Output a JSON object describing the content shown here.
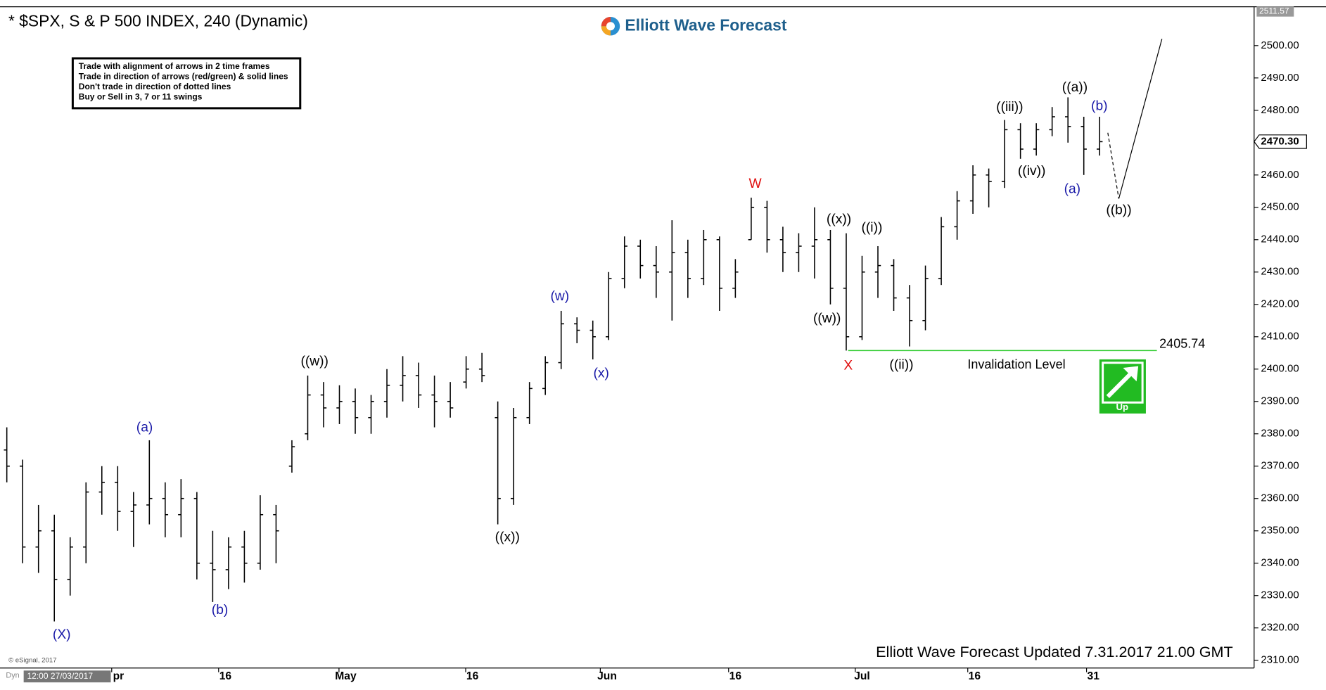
{
  "chart_data": {
    "type": "ohlc",
    "title": "* $SPX, S & P 500 INDEX, 240 (Dynamic)",
    "brand": "Elliott Wave Forecast",
    "rules": [
      "Trade with alignment of arrows in 2 time frames",
      "Trade in direction of arrows (red/green) & solid lines",
      "Don't trade in direction of dotted lines",
      "Buy or Sell in 3, 7 or 11 swings"
    ],
    "footer": "Elliott Wave Forecast Updated 7.31.2017 21.00 GMT",
    "source": "© eSignal, 2017",
    "timestamp": "12:00 27/03/2017",
    "interval_tag": "Dyn",
    "badge": "Up",
    "color": "#000000",
    "x": [
      0,
      1,
      2,
      3,
      4,
      5,
      6,
      7,
      8,
      9,
      10,
      11,
      12,
      13,
      14,
      15,
      16,
      17,
      18,
      19,
      20,
      21,
      22,
      23,
      24,
      25,
      26,
      27,
      28,
      29,
      30,
      31,
      32,
      33,
      34,
      35,
      36,
      37,
      38,
      39,
      40,
      41,
      42,
      43,
      44,
      45,
      46,
      47,
      48,
      49,
      50,
      51,
      52,
      53,
      54,
      55,
      56,
      57,
      58,
      59,
      60,
      61,
      62,
      63,
      64,
      65,
      66,
      67,
      68,
      69
    ],
    "open": [
      2375,
      2370,
      2345,
      2350,
      2335,
      2345,
      2362,
      2365,
      2356,
      2358,
      2360,
      2355,
      2360,
      2340,
      2338,
      2345,
      2340,
      2355,
      2370,
      2380,
      2392,
      2388,
      2390,
      2385,
      2390,
      2395,
      2398,
      2392,
      2390,
      2396,
      2400,
      2385,
      2360,
      2385,
      2394,
      2402,
      2414,
      2412,
      2410,
      2428,
      2438,
      2432,
      2430,
      2436,
      2428,
      2440,
      2425,
      2440,
      2450,
      2440,
      2436,
      2438,
      2440,
      2425,
      2410,
      2430,
      2432,
      2422,
      2415,
      2428,
      2444,
      2452,
      2460,
      2458,
      2474,
      2468,
      2474,
      2478,
      2475,
      2468
    ],
    "high": [
      2382,
      2372,
      2358,
      2355,
      2348,
      2365,
      2370,
      2370,
      2362,
      2378,
      2365,
      2366,
      2362,
      2350,
      2348,
      2350,
      2361,
      2358,
      2378,
      2398,
      2396,
      2395,
      2394,
      2392,
      2400,
      2404,
      2402,
      2398,
      2396,
      2404,
      2405,
      2390,
      2388,
      2396,
      2404,
      2418,
      2416,
      2415,
      2430,
      2441,
      2440,
      2438,
      2446,
      2440,
      2443,
      2441,
      2434,
      2453,
      2452,
      2444,
      2442,
      2450,
      2443,
      2442,
      2435,
      2438,
      2434,
      2426,
      2432,
      2447,
      2455,
      2463,
      2462,
      2477,
      2476,
      2476,
      2481,
      2484,
      2478,
      2478
    ],
    "low": [
      2365,
      2340,
      2337,
      2322,
      2330,
      2340,
      2355,
      2350,
      2345,
      2352,
      2348,
      2348,
      2335,
      2328,
      2332,
      2334,
      2338,
      2340,
      2368,
      2378,
      2382,
      2383,
      2380,
      2380,
      2385,
      2390,
      2388,
      2382,
      2385,
      2394,
      2396,
      2352,
      2358,
      2383,
      2392,
      2400,
      2408,
      2403,
      2409,
      2425,
      2428,
      2422,
      2415,
      2422,
      2426,
      2418,
      2422,
      2440,
      2436,
      2430,
      2430,
      2428,
      2420,
      2405.74,
      2409,
      2422,
      2418,
      2407,
      2412,
      2426,
      2440,
      2448,
      2450,
      2456,
      2465,
      2466,
      2472,
      2470,
      2460,
      2466
    ],
    "close": [
      2370,
      2345,
      2350,
      2335,
      2345,
      2362,
      2365,
      2356,
      2358,
      2360,
      2355,
      2360,
      2340,
      2338,
      2345,
      2340,
      2355,
      2350,
      2376,
      2392,
      2388,
      2390,
      2385,
      2390,
      2395,
      2398,
      2392,
      2390,
      2388,
      2400,
      2398,
      2360,
      2385,
      2394,
      2402,
      2414,
      2412,
      2410,
      2428,
      2438,
      2432,
      2430,
      2436,
      2428,
      2440,
      2425,
      2430,
      2450,
      2440,
      2436,
      2438,
      2440,
      2425,
      2410,
      2430,
      2432,
      2422,
      2415,
      2428,
      2444,
      2452,
      2460,
      2458,
      2474,
      2468,
      2474,
      2478,
      2475,
      2468,
      2470.3
    ],
    "xlim": [
      -0.43,
      78.7
    ],
    "ylim": [
      2307.6,
      2512
    ],
    "xticks": [
      {
        "value": 7.05,
        "label": "pr"
      },
      {
        "value": 13.8,
        "label": "16"
      },
      {
        "value": 21.4,
        "label": "May"
      },
      {
        "value": 29.4,
        "label": "16"
      },
      {
        "value": 37.9,
        "label": "Jun"
      },
      {
        "value": 46.0,
        "label": "16"
      },
      {
        "value": 54.0,
        "label": "Jul"
      },
      {
        "value": 61.1,
        "label": "16"
      },
      {
        "value": 68.6,
        "label": "31"
      }
    ],
    "yticks": [
      {
        "value": 2310,
        "label": "2310.00"
      },
      {
        "value": 2320,
        "label": "2320.00"
      },
      {
        "value": 2330,
        "label": "2330.00"
      },
      {
        "value": 2340,
        "label": "2340.00"
      },
      {
        "value": 2350,
        "label": "2350.00"
      },
      {
        "value": 2360,
        "label": "2360.00"
      },
      {
        "value": 2370,
        "label": "2370.00"
      },
      {
        "value": 2380,
        "label": "2380.00"
      },
      {
        "value": 2390,
        "label": "2390.00"
      },
      {
        "value": 2400,
        "label": "2400.00"
      },
      {
        "value": 2410,
        "label": "2410.00"
      },
      {
        "value": 2420,
        "label": "2420.00"
      },
      {
        "value": 2430,
        "label": "2430.00"
      },
      {
        "value": 2440,
        "label": "2440.00"
      },
      {
        "value": 2450,
        "label": "2450.00"
      },
      {
        "value": 2460,
        "label": "2460.00"
      },
      {
        "value": 2470,
        "label": "2470.00"
      },
      {
        "value": 2480,
        "label": "2480.00"
      },
      {
        "value": 2490,
        "label": "2490.00"
      },
      {
        "value": 2500,
        "label": "2500.00"
      }
    ],
    "scale_high": 2511.57,
    "last_price": {
      "value": 2470.3,
      "label": "2470.30"
    },
    "invalidation_level": 2405.74,
    "invalidation_label": "Invalidation Level",
    "invalidation_color": "#33cc33",
    "annotations": [
      {
        "text": "(X)",
        "color": "#1a1aa8"
      },
      {
        "text": "(a)",
        "color": "#1a1aa8"
      },
      {
        "text": "(b)",
        "color": "#1a1aa8"
      },
      {
        "text": "((w))",
        "color": "#000000"
      },
      {
        "text": "((x))",
        "color": "#000000"
      },
      {
        "text": "(w)",
        "color": "#1a1aa8"
      },
      {
        "text": "(x)",
        "color": "#1a1aa8"
      },
      {
        "text": "W",
        "color": "#e01010"
      },
      {
        "text": "((x))",
        "color": "#000000"
      },
      {
        "text": "((w))",
        "color": "#000000"
      },
      {
        "text": "X",
        "color": "#e01010"
      },
      {
        "text": "((i))",
        "color": "#000000"
      },
      {
        "text": "((ii))",
        "color": "#000000"
      },
      {
        "text": "((iii))",
        "color": "#000000"
      },
      {
        "text": "((iv))",
        "color": "#000000"
      },
      {
        "text": "((a))",
        "color": "#000000"
      },
      {
        "text": "(b)",
        "color": "#1a1aa8"
      },
      {
        "text": "(a)",
        "color": "#1a1aa8"
      },
      {
        "text": "((b))",
        "color": "#000000"
      }
    ]
  }
}
